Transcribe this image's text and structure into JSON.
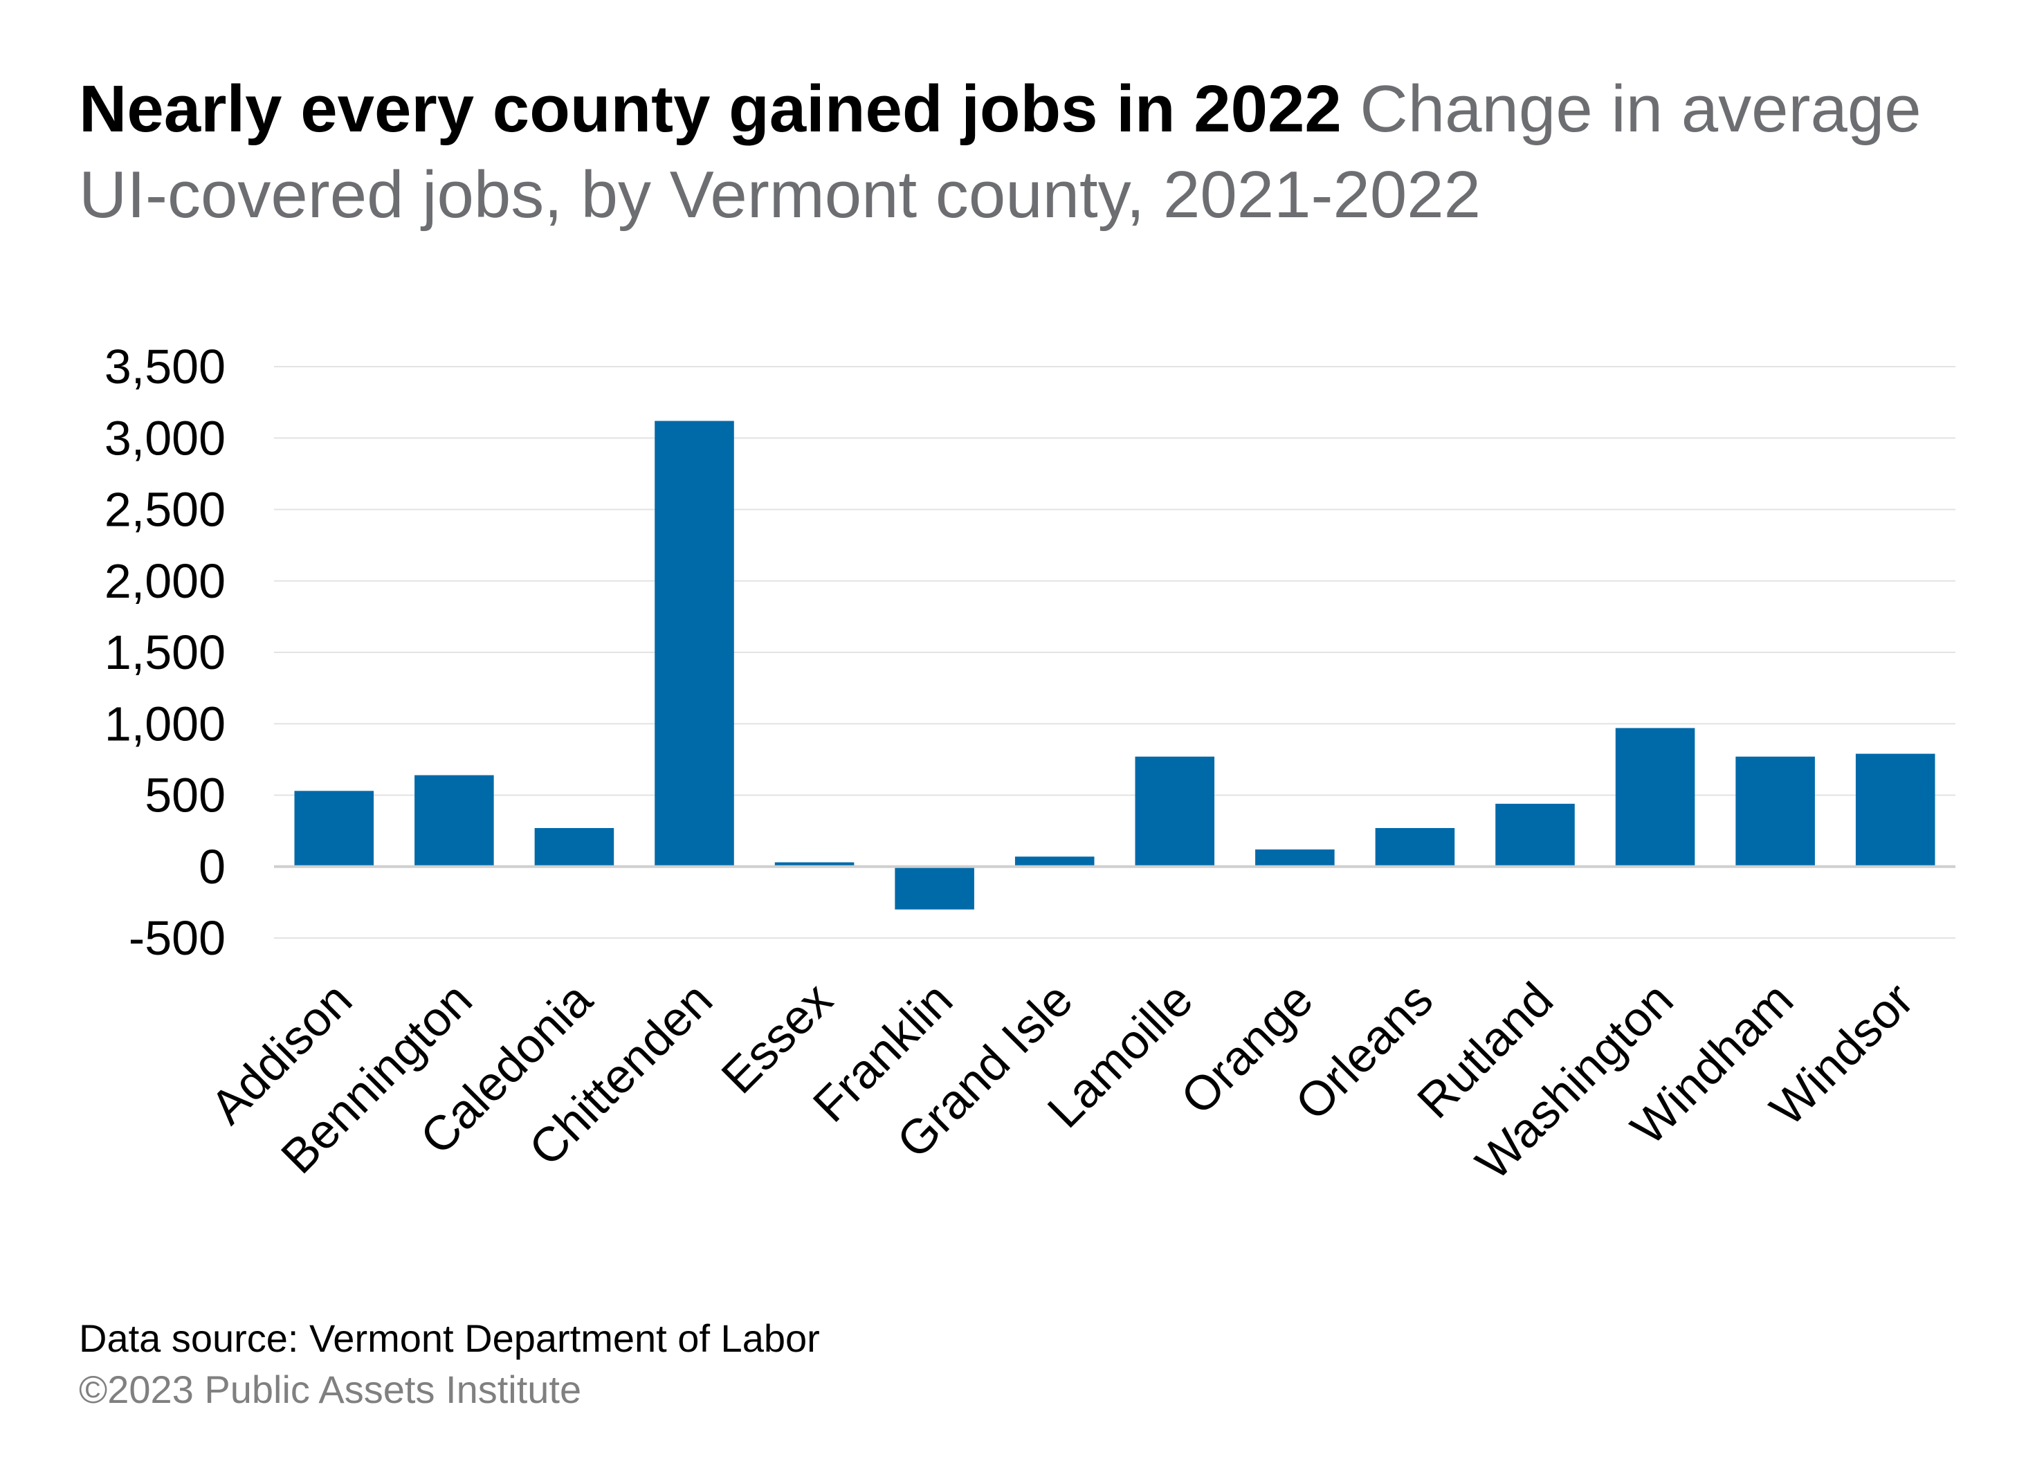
{
  "colors": {
    "bar": "#006aa9",
    "gridline": "#e3e3e3",
    "zero_line": "#cfcfcf",
    "title": "#000000",
    "subtitle": "#6d6e71",
    "source": "#000000",
    "copyright": "#808080",
    "tick_text": "#000000"
  },
  "chart_data": {
    "type": "bar",
    "title": "Nearly every county gained jobs in 2022",
    "subtitle": "Change in average UI-covered jobs, by Vermont county, 2021-2022",
    "categories": [
      "Addison",
      "Bennington",
      "Caledonia",
      "Chittenden",
      "Essex",
      "Franklin",
      "Grand Isle",
      "Lamoille",
      "Orange",
      "Orleans",
      "Rutland",
      "Washington",
      "Windham",
      "Windsor"
    ],
    "values": [
      530,
      640,
      270,
      3120,
      30,
      -300,
      70,
      770,
      120,
      270,
      440,
      970,
      770,
      790
    ],
    "y_ticks": [
      -500,
      0,
      500,
      1000,
      1500,
      2000,
      2500,
      3000,
      3500
    ],
    "y_tick_labels": [
      "-500",
      "0",
      "500",
      "1,000",
      "1,500",
      "2,000",
      "2,500",
      "3,000",
      "3,500"
    ],
    "ylim": [
      -500,
      3500
    ],
    "xlabel": "",
    "ylabel": "",
    "grid": true,
    "legend": "none"
  },
  "footer": {
    "source": "Data source: Vermont Department of Labor",
    "copyright": "©2023 Public Assets Institute"
  }
}
